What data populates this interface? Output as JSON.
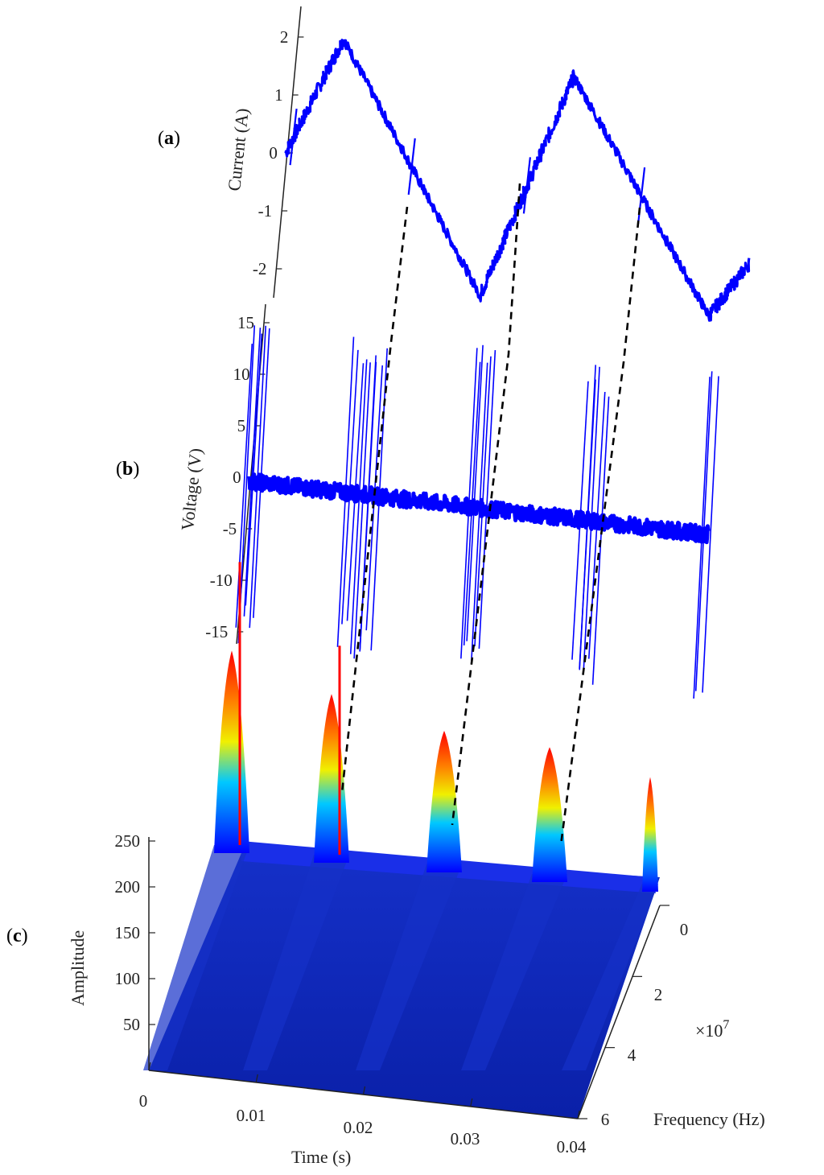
{
  "panel_labels": {
    "a": "a",
    "b": "b",
    "c": "c"
  },
  "colors": {
    "signal": "#0000ff",
    "axis": "#222222",
    "connector": "#000000"
  },
  "chart_data": [
    {
      "id": "a",
      "type": "line",
      "ylabel": "Current (A)",
      "yticks": [
        "2",
        "1",
        "0",
        "-1",
        "-2"
      ],
      "ylim": [
        -2.5,
        2.5
      ],
      "x": [
        0,
        0.006,
        0.016,
        0.026,
        0.036,
        0.04
      ],
      "series": [
        {
          "values": [
            0,
            2.1,
            -2.1,
            1.9,
            -2.0,
            -1.0
          ]
        }
      ]
    },
    {
      "id": "b",
      "type": "line",
      "ylabel": "Voltage (V)",
      "yticks": [
        "15",
        "10",
        "5",
        "0",
        "-5",
        "-10",
        "-15"
      ],
      "ylim": [
        -16,
        16
      ],
      "x": [
        0,
        0.01,
        0.02,
        0.03,
        0.04
      ],
      "series": [
        {
          "values": [
            0,
            0,
            0,
            0,
            0
          ]
        }
      ],
      "spike_times": [
        0.0005,
        0.01,
        0.02,
        0.03,
        0.04
      ]
    },
    {
      "id": "c",
      "type": "surface",
      "zlabel": "Amplitude",
      "xlabel": "Time (s)",
      "ylabel": "Frequency (Hz)",
      "y_multiplier": "×10",
      "y_exponent": "7",
      "zticks": [
        "250",
        "200",
        "150",
        "100",
        "50"
      ],
      "xticks": [
        "0",
        "0.01",
        "0.02",
        "0.03",
        "0.04"
      ],
      "yticks": [
        "0",
        "2",
        "4",
        "6"
      ],
      "zlim": [
        0,
        260
      ],
      "baseline_amplitude": 210,
      "peaks": [
        {
          "time": 0.0005,
          "amplitude": 258
        },
        {
          "time": 0.01,
          "amplitude": 248
        },
        {
          "time": 0.02,
          "amplitude": 240
        },
        {
          "time": 0.03,
          "amplitude": 238
        },
        {
          "time": 0.04,
          "amplitude": 232
        }
      ]
    }
  ]
}
